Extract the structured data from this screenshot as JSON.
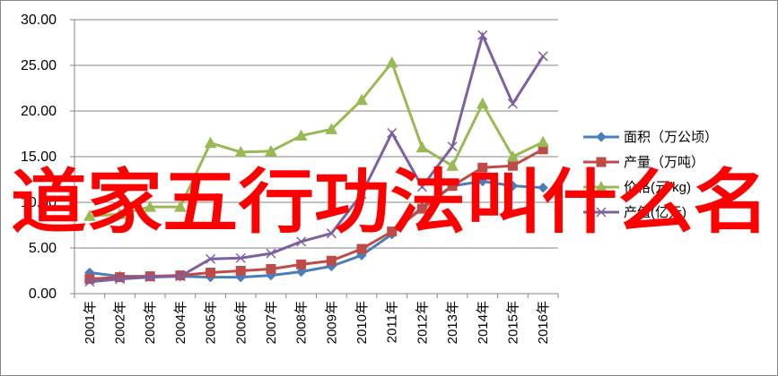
{
  "chart_data": {
    "type": "line",
    "categories": [
      "2001年",
      "2002年",
      "2003年",
      "2004年",
      "2005年",
      "2006年",
      "2007年",
      "2008年",
      "2009年",
      "2010年",
      "2011年",
      "2012年",
      "2013年",
      "2014年",
      "2015年",
      "2016年"
    ],
    "series": [
      {
        "name": "面积（万公顷）",
        "color": "#4a7ebb",
        "marker": "diamond",
        "values": [
          2.3,
          1.9,
          1.9,
          1.9,
          1.8,
          1.8,
          2.0,
          2.4,
          3.0,
          4.2,
          6.5,
          9.5,
          11.8,
          12.3,
          11.8,
          11.6
        ]
      },
      {
        "name": "产量（万吨）",
        "color": "#be4b48",
        "marker": "square",
        "values": [
          1.6,
          1.8,
          1.9,
          2.0,
          2.3,
          2.5,
          2.7,
          3.2,
          3.6,
          4.9,
          6.8,
          9.3,
          11.8,
          13.8,
          14.0,
          15.8
        ]
      },
      {
        "name": "价格(元/kg)",
        "color": "#98b954",
        "marker": "triangle",
        "values": [
          8.5,
          8.7,
          9.5,
          9.5,
          16.5,
          15.5,
          15.6,
          17.3,
          18.0,
          21.2,
          25.3,
          16.0,
          14.0,
          20.8,
          15.0,
          16.6
        ]
      },
      {
        "name": "产值(亿元)",
        "color": "#7d60a0",
        "marker": "x",
        "values": [
          1.3,
          1.6,
          1.8,
          1.9,
          3.8,
          3.9,
          4.4,
          5.7,
          6.6,
          10.9,
          17.6,
          11.7,
          16.1,
          28.3,
          20.8,
          26.0
        ]
      }
    ],
    "ylim": [
      0,
      30
    ],
    "yticks": [
      {
        "value": 0,
        "label": "0.00"
      },
      {
        "value": 5,
        "label": "5.00"
      },
      {
        "value": 10,
        "label": "10.00"
      },
      {
        "value": 15,
        "label": "15.00"
      },
      {
        "value": 20,
        "label": "20.00"
      },
      {
        "value": 25,
        "label": "25.00"
      },
      {
        "value": 30,
        "label": "30.00"
      }
    ],
    "grid": true,
    "legend": "right",
    "overlay_text": "道家五行功法叫什么名"
  }
}
